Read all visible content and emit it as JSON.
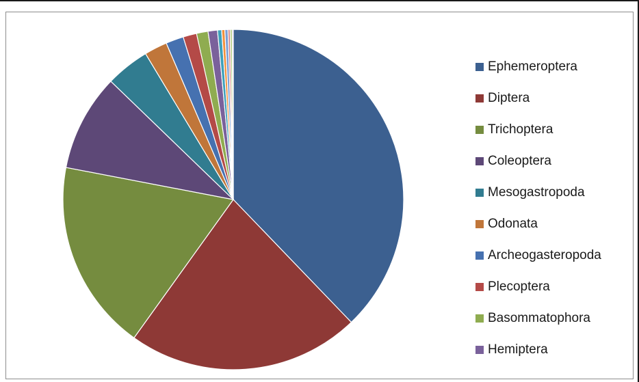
{
  "chart_data": {
    "type": "pie",
    "title": "",
    "legend_position": "right",
    "slices": [
      {
        "label": "Ephemeroptera",
        "value": 38.2,
        "color": "#3C6090"
      },
      {
        "label": "Diptera",
        "value": 22.3,
        "color": "#8E3936"
      },
      {
        "label": "Trichoptera",
        "value": 18.3,
        "color": "#758C3F"
      },
      {
        "label": "Coleoptera",
        "value": 9.3,
        "color": "#5D4877"
      },
      {
        "label": "Mesogastropoda",
        "value": 4.2,
        "color": "#317C90"
      },
      {
        "label": "Odonata",
        "value": 2.2,
        "color": "#C0763A"
      },
      {
        "label": "Archeogasteropoda",
        "value": 1.7,
        "color": "#4671B0"
      },
      {
        "label": "Plecoptera",
        "value": 1.3,
        "color": "#B44A47"
      },
      {
        "label": "Basommatophora",
        "value": 1.1,
        "color": "#8FAC50"
      },
      {
        "label": "Hemiptera",
        "value": 0.9,
        "color": "#7A619B"
      },
      {
        "value": 0.4,
        "color": "#3EA0BA"
      },
      {
        "value": 0.3,
        "color": "#F2913D"
      },
      {
        "value": 0.3,
        "color": "#7A9FD6"
      },
      {
        "value": 0.2,
        "color": "#D37F7D"
      },
      {
        "value": 0.2,
        "color": "#B3CB84"
      },
      {
        "value": 0.1,
        "color": "#A08FBF"
      }
    ]
  }
}
